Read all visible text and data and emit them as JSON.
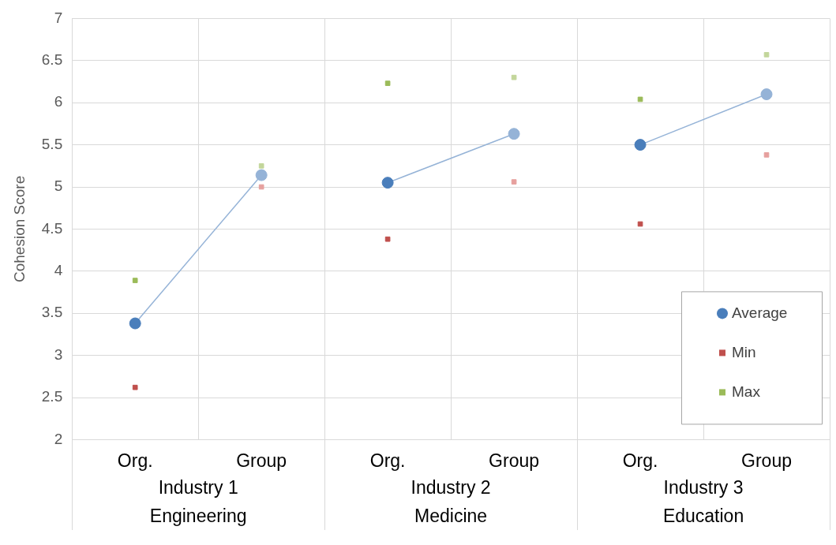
{
  "chart_data": {
    "type": "scatter",
    "ylabel": "Cohesion Score",
    "categories": [
      "Org.",
      "Group",
      "Org.",
      "Group",
      "Org.",
      "Group"
    ],
    "annotations": [
      "Industry 1\nEngineering",
      "Industry 2\nMedicine",
      "Industry 3\nEducation"
    ],
    "series": [
      {
        "type": "line",
        "color": "#95b3d7",
        "values": [
          3.38,
          5.14,
          null,
          null,
          null,
          null
        ],
        "marker": "none"
      },
      {
        "type": "line",
        "color": "#95b3d7",
        "values": [
          null,
          null,
          5.05,
          5.63,
          null,
          null
        ],
        "marker": "none"
      },
      {
        "type": "line",
        "color": "#95b3d7",
        "values": [
          null,
          null,
          null,
          null,
          5.5,
          6.1
        ],
        "marker": "none"
      },
      {
        "name": "Average",
        "color": "#4a7ebb",
        "colors": [
          "#4a7ebb",
          "#95b3d7",
          "#4a7ebb",
          "#95b3d7",
          "#4a7ebb",
          "#95b3d7"
        ],
        "values": [
          3.38,
          5.14,
          5.05,
          5.63,
          5.5,
          6.1
        ],
        "marker": "circle"
      },
      {
        "name": "Min",
        "color": "#c0504d",
        "colors": [
          "#c0504d",
          "#e6a09e",
          "#c0504d",
          "#e6a09e",
          "#c0504d",
          "#e6a09e"
        ],
        "values": [
          2.62,
          5.0,
          4.38,
          5.06,
          4.56,
          5.38
        ],
        "marker": "square"
      },
      {
        "name": "Max",
        "color": "#9bbb59",
        "colors": [
          "#9bbb59",
          "#c3d69b",
          "#9bbb59",
          "#c3d69b",
          "#9bbb59",
          "#c3d69b"
        ],
        "values": [
          3.89,
          5.25,
          6.23,
          6.3,
          6.04,
          6.57
        ],
        "marker": "square"
      }
    ],
    "ylim": [
      2,
      7
    ],
    "yticks": [
      2,
      2.5,
      3,
      3.5,
      4,
      4.5,
      5,
      5.5,
      6,
      6.5,
      7
    ],
    "grid": true,
    "legend": "bottom right"
  }
}
